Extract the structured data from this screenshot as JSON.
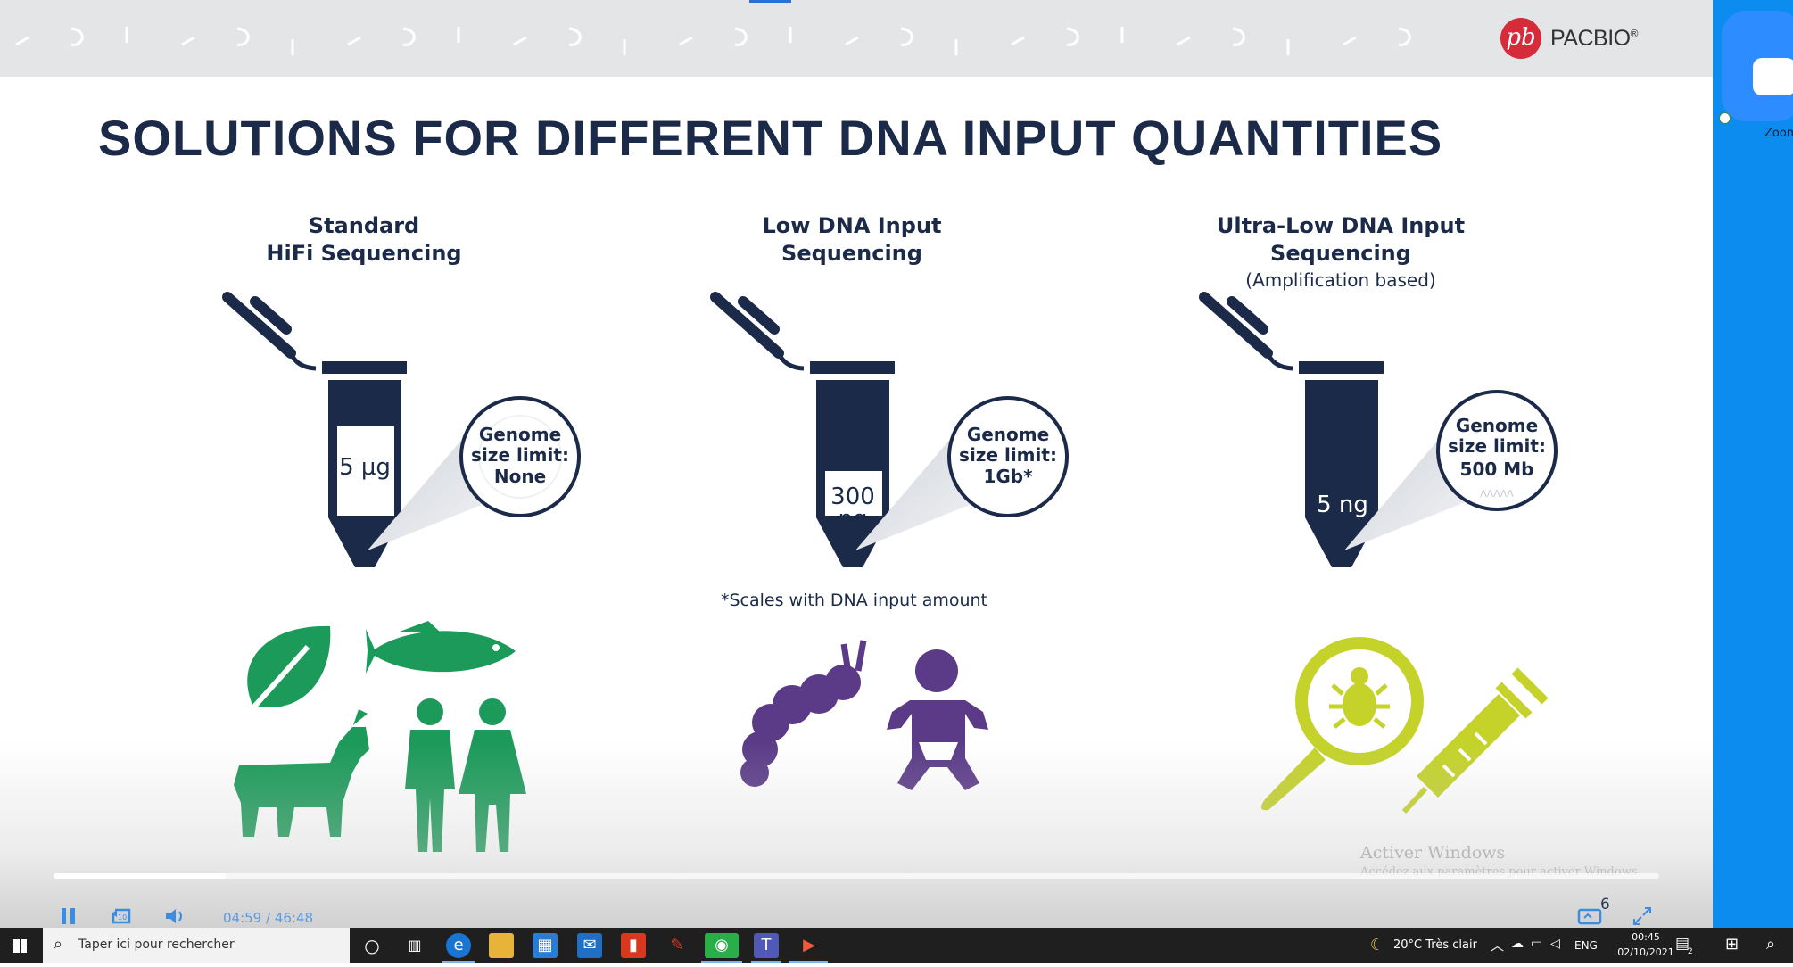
{
  "slide": {
    "title": "SOLUTIONS FOR DIFFERENT DNA INPUT QUANTITIES",
    "logo_mark": "pb",
    "logo_text": "PACBIO",
    "logo_reg": "®",
    "columns": [
      {
        "heading_line1": "Standard",
        "heading_line2": "HiFi Sequencing",
        "amount_line1": "5 μg",
        "amount_line2": "",
        "limit_line1": "Genome",
        "limit_line2": "size limit:",
        "limit_line3": "None",
        "fill_level": 0.25,
        "icons": [
          "leaf-icon",
          "fish-icon",
          "goat-icon",
          "people-icon"
        ],
        "icon_color": "#1b9a59"
      },
      {
        "heading_line1": "Low DNA Input",
        "heading_line2": "Sequencing",
        "amount_line1": "300",
        "amount_line2": "ng",
        "limit_line1": "Genome",
        "limit_line2": "size limit:",
        "limit_line3": "1Gb*",
        "fill_level": 0.55,
        "icons": [
          "caterpillar-icon",
          "baby-icon"
        ],
        "icon_color": "#5b3b88"
      },
      {
        "heading_line1": "Ultra-Low DNA Input",
        "heading_line2": "Sequencing",
        "subheading": "(Amplification based)",
        "amount_line1": "5 ng",
        "amount_line2": "",
        "limit_line1": "Genome",
        "limit_line2": "size limit:",
        "limit_line3": "500 Mb",
        "fill_level": 1.0,
        "icons": [
          "bug-magnifier-icon",
          "syringe-icon"
        ],
        "icon_color": "#c4d22a"
      }
    ],
    "footnote": "*Scales with DNA input amount",
    "colors": {
      "navy": "#1b2a48",
      "banner": "#e4e5e7",
      "brand_red": "#d52b3b"
    }
  },
  "watermark": {
    "line1": "Activer Windows",
    "line2": "Accédez aux paramètres pour activer Windows."
  },
  "player": {
    "current_time": "04:59",
    "separator": "/",
    "total_time": "46:48",
    "progress": 0.107,
    "caption_count": "6",
    "icons": [
      "pause-icon",
      "rewind-10-icon",
      "volume-icon",
      "captions-icon",
      "fullscreen-icon"
    ]
  },
  "zoom": {
    "label": "Zoom"
  },
  "taskbar": {
    "search_placeholder": "Taper ici pour rechercher",
    "apps": [
      "cortana-icon",
      "task-view-icon",
      "edge-icon",
      "file-explorer-icon",
      "store-icon",
      "mail-icon",
      "office-icon",
      "paint-icon",
      "wechat-icon",
      "teams-icon",
      "powerpoint-icon"
    ],
    "weather": "20°C  Très clair",
    "language": "ENG",
    "time": "00:45",
    "date": "02/10/2021",
    "notifications": "2"
  }
}
